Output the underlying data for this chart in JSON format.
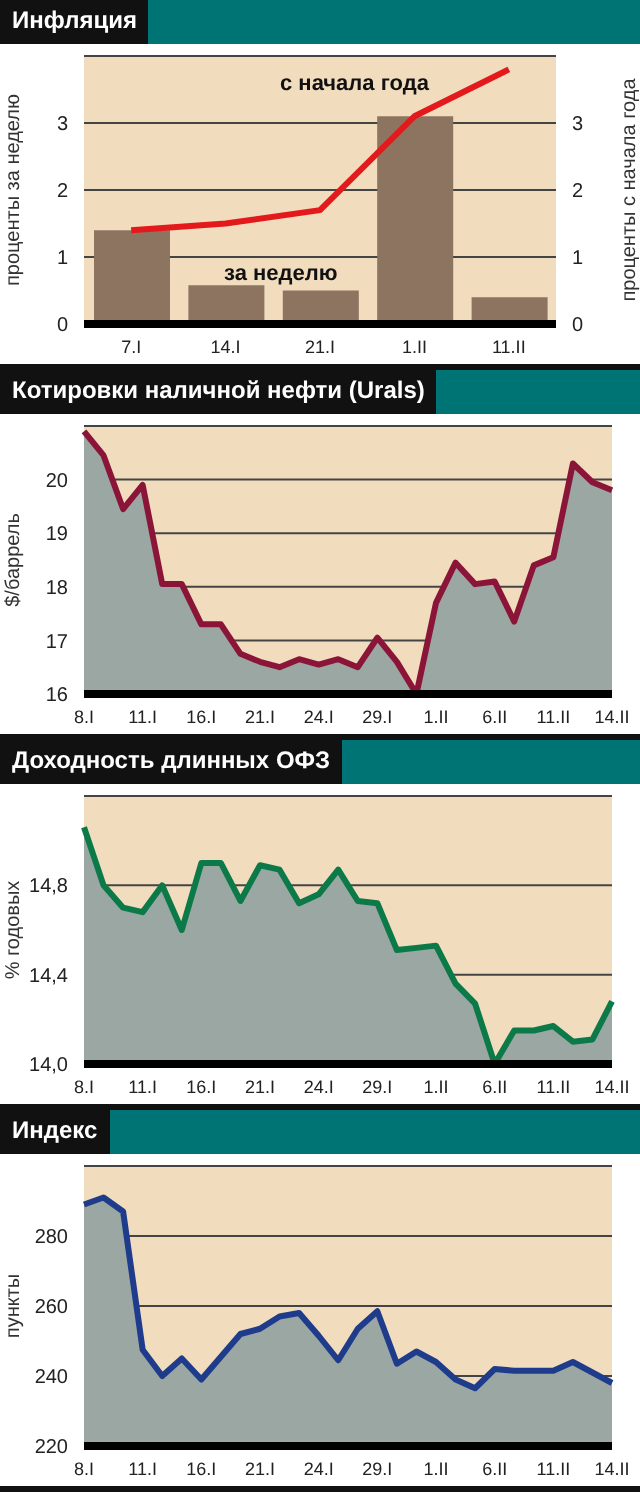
{
  "chart_data": [
    {
      "type": "bar",
      "title": "Инфляция",
      "ylabel": "проценты за неделю",
      "y2label": "проценты с начала года",
      "categories": [
        "7.I",
        "14.I",
        "21.I",
        "1.II",
        "11.II"
      ],
      "ylim": [
        0,
        4
      ],
      "yticks": [
        0,
        1,
        2,
        3
      ],
      "y2lim": [
        0,
        4
      ],
      "y2ticks": [
        0,
        1,
        2,
        3
      ],
      "grid": "y",
      "series": [
        {
          "name": "за неделю",
          "color": "#8c7461",
          "values": [
            1.4,
            0.58,
            0.5,
            3.1,
            0.4
          ]
        },
        {
          "name": "с начала года",
          "type": "line",
          "color": "#e3191b",
          "values": [
            1.4,
            1.5,
            1.7,
            3.1,
            3.8
          ]
        }
      ]
    },
    {
      "type": "area",
      "title": "Котировки наличной нефти (Urals)",
      "ylabel": "$/баррель",
      "categories": [
        "8.I",
        null,
        null,
        "11.I",
        null,
        null,
        "16.I",
        null,
        null,
        "21.I",
        null,
        null,
        "24.I",
        null,
        null,
        "29.I",
        null,
        null,
        "1.II",
        null,
        null,
        "6.II",
        null,
        null,
        "11.II",
        null,
        null,
        "14.II"
      ],
      "ylim": [
        16,
        21
      ],
      "yticks": [
        16,
        17,
        18,
        19,
        20
      ],
      "grid": "y",
      "series": [
        {
          "color": "#8b1538",
          "values": [
            20.9,
            20.45,
            19.45,
            19.9,
            18.05,
            18.05,
            17.3,
            17.3,
            16.75,
            16.6,
            16.5,
            16.65,
            16.55,
            16.65,
            16.5,
            17.05,
            16.6,
            16.0,
            17.7,
            18.45,
            18.05,
            18.1,
            17.35,
            18.4,
            18.55,
            20.3,
            19.95,
            19.8
          ]
        }
      ]
    },
    {
      "type": "area",
      "title": "Доходность длинных ОФЗ",
      "ylabel": "% годовых",
      "categories": [
        "8.I",
        null,
        null,
        "11.I",
        null,
        null,
        "16.I",
        null,
        null,
        "21.I",
        null,
        null,
        "24.I",
        null,
        null,
        "29.I",
        null,
        null,
        "1.II",
        null,
        null,
        "6.II",
        null,
        null,
        "11.II",
        null,
        null,
        "14.II"
      ],
      "ylim": [
        14,
        15.2
      ],
      "yticks": [
        {
          "value": 14,
          "label": "14,0"
        },
        {
          "value": 14.4,
          "label": "14,4"
        },
        {
          "value": 14.8,
          "label": "14,8"
        }
      ],
      "grid": "y",
      "series": [
        {
          "color": "#0b7a48",
          "values": [
            15.06,
            14.8,
            14.7,
            14.68,
            14.8,
            14.6,
            14.9,
            14.9,
            14.73,
            14.89,
            14.87,
            14.72,
            14.76,
            14.87,
            14.73,
            14.72,
            14.51,
            14.52,
            14.53,
            14.36,
            14.27,
            14.0,
            14.15,
            14.15,
            14.17,
            14.1,
            14.11,
            14.28
          ]
        }
      ]
    },
    {
      "type": "area",
      "title": "Индекс",
      "ylabel": "пункты",
      "categories": [
        "8.I",
        null,
        null,
        "11.I",
        null,
        null,
        "16.I",
        null,
        null,
        "21.I",
        null,
        null,
        "24.I",
        null,
        null,
        "29.I",
        null,
        null,
        "1.II",
        null,
        null,
        "6.II",
        null,
        null,
        "11.II",
        null,
        null,
        "14.II"
      ],
      "ylim": [
        220,
        300
      ],
      "yticks": [
        220,
        240,
        260,
        280
      ],
      "grid": "y",
      "series": [
        {
          "color": "#1f3c8c",
          "values": [
            289,
            291,
            287,
            247.5,
            240,
            245,
            239,
            245.5,
            252,
            253.5,
            257,
            258,
            251.5,
            244.5,
            253.5,
            258.5,
            243.5,
            247,
            244,
            239,
            236.5,
            242,
            241.5,
            241.5,
            241.5,
            244,
            241,
            238
          ]
        }
      ]
    }
  ]
}
